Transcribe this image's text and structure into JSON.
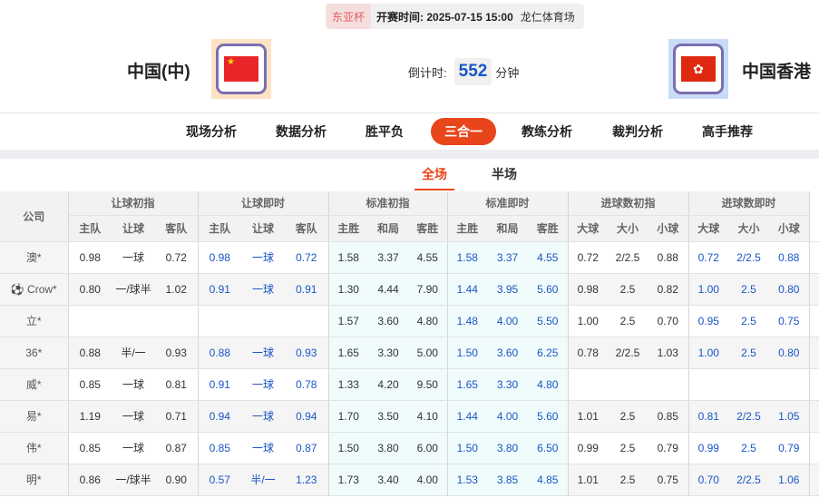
{
  "match": {
    "cup": "东亚杯",
    "kickoff_label": "开赛时间:",
    "kickoff": "2025-07-15 15:00",
    "venue": "龙仁体育场",
    "home": {
      "name": "中国(中)",
      "flag": "china-flag"
    },
    "away": {
      "name": "中国香港",
      "flag": "hong-kong-flag"
    },
    "countdown_label": "倒计时:",
    "countdown": "552",
    "countdown_unit": "分钟"
  },
  "colors": {
    "accent": "#e8451a",
    "live_odds": "#1a56c4"
  },
  "nav": [
    "现场分析",
    "数据分析",
    "胜平负",
    "三合一",
    "教练分析",
    "裁判分析",
    "高手推荐"
  ],
  "nav_active": "三合一",
  "subtabs": [
    "全场",
    "半场"
  ],
  "table": {
    "company_header": "公司",
    "groups": [
      "让球初指",
      "让球即时",
      "标准初指",
      "标准即时",
      "进球数初指",
      "进球数即时"
    ],
    "subheaders": [
      "主队",
      "让球",
      "客队",
      "主队",
      "让球",
      "客队",
      "主胜",
      "和局",
      "客胜",
      "主胜",
      "和局",
      "客胜",
      "大球",
      "大小",
      "小球",
      "大球",
      "大小",
      "小球"
    ],
    "rows": [
      {
        "company": "澳*",
        "cells": [
          "0.98",
          "一球",
          "0.72",
          "0.98",
          "一球",
          "0.72",
          "1.58",
          "3.37",
          "4.55",
          "1.58",
          "3.37",
          "4.55",
          "0.72",
          "2/2.5",
          "0.88",
          "0.72",
          "2/2.5",
          "0.88"
        ]
      },
      {
        "company": "Crow*",
        "icon": "soccer-ball-icon",
        "cells": [
          "0.80",
          "一/球半",
          "1.02",
          "0.91",
          "一球",
          "0.91",
          "1.30",
          "4.44",
          "7.90",
          "1.44",
          "3.95",
          "5.60",
          "0.98",
          "2.5",
          "0.82",
          "1.00",
          "2.5",
          "0.80"
        ]
      },
      {
        "company": "立*",
        "cells": [
          "",
          "",
          "",
          "",
          "",
          "",
          "1.57",
          "3.60",
          "4.80",
          "1.48",
          "4.00",
          "5.50",
          "1.00",
          "2.5",
          "0.70",
          "0.95",
          "2.5",
          "0.75"
        ]
      },
      {
        "company": "36*",
        "cells": [
          "0.88",
          "半/一",
          "0.93",
          "0.88",
          "一球",
          "0.93",
          "1.65",
          "3.30",
          "5.00",
          "1.50",
          "3.60",
          "6.25",
          "0.78",
          "2/2.5",
          "1.03",
          "1.00",
          "2.5",
          "0.80"
        ]
      },
      {
        "company": "威*",
        "cells": [
          "0.85",
          "一球",
          "0.81",
          "0.91",
          "一球",
          "0.78",
          "1.33",
          "4.20",
          "9.50",
          "1.65",
          "3.30",
          "4.80",
          "",
          "",
          "",
          "",
          "",
          ""
        ]
      },
      {
        "company": "易*",
        "cells": [
          "1.19",
          "一球",
          "0.71",
          "0.94",
          "一球",
          "0.94",
          "1.70",
          "3.50",
          "4.10",
          "1.44",
          "4.00",
          "5.60",
          "1.01",
          "2.5",
          "0.85",
          "0.81",
          "2/2.5",
          "1.05"
        ]
      },
      {
        "company": "伟*",
        "cells": [
          "0.85",
          "一球",
          "0.87",
          "0.85",
          "一球",
          "0.87",
          "1.50",
          "3.80",
          "6.00",
          "1.50",
          "3.80",
          "6.50",
          "0.99",
          "2.5",
          "0.79",
          "0.99",
          "2.5",
          "0.79"
        ]
      },
      {
        "company": "明*",
        "cells": [
          "0.86",
          "一/球半",
          "0.90",
          "0.57",
          "半/一",
          "1.23",
          "1.73",
          "3.40",
          "4.00",
          "1.53",
          "3.85",
          "4.85",
          "1.01",
          "2.5",
          "0.75",
          "0.70",
          "2/2.5",
          "1.06"
        ]
      }
    ]
  }
}
